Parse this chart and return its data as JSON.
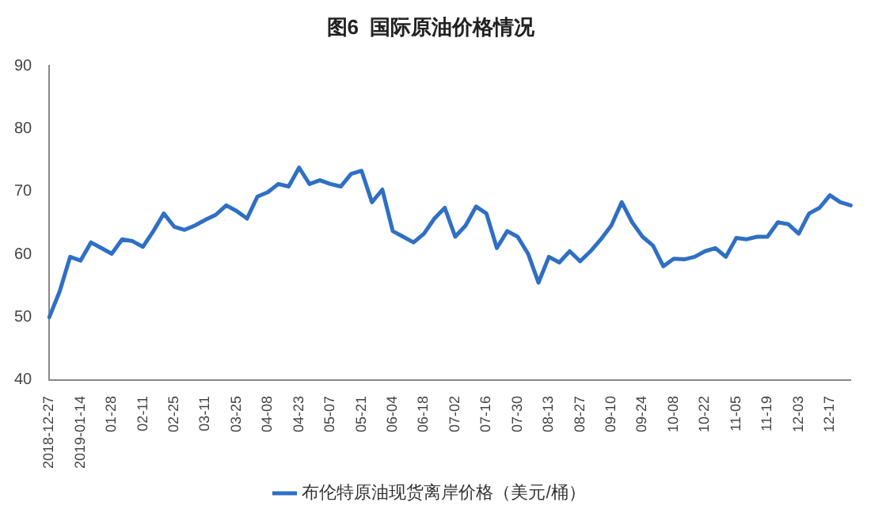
{
  "chart_data": {
    "type": "line",
    "title": "图6  国际原油价格情况",
    "categories": [
      "2018-12-27",
      null,
      null,
      "2019-01-14",
      null,
      null,
      "01-28",
      null,
      null,
      "02-11",
      null,
      null,
      "02-25",
      null,
      null,
      "03-11",
      null,
      null,
      "03-25",
      null,
      null,
      "04-08",
      null,
      null,
      "04-23",
      null,
      null,
      "05-07",
      null,
      null,
      "05-21",
      null,
      null,
      "06-04",
      null,
      null,
      "06-18",
      null,
      null,
      "07-02",
      null,
      null,
      "07-16",
      null,
      null,
      "07-30",
      null,
      null,
      "08-13",
      null,
      null,
      "08-27",
      null,
      null,
      "09-10",
      null,
      null,
      "09-24",
      null,
      null,
      "10-08",
      null,
      null,
      "10-22",
      null,
      null,
      "11-05",
      null,
      null,
      "11-19",
      null,
      null,
      "12-03",
      null,
      null,
      "12-17",
      null,
      null
    ],
    "series": [
      {
        "name": "布伦特原油现货离岸价格（美元/桶）",
        "color": "#2f6fc4",
        "values": [
          50.0,
          54.1,
          59.6,
          59.0,
          61.9,
          61.0,
          60.1,
          62.4,
          62.1,
          61.2,
          63.7,
          66.5,
          64.4,
          63.9,
          64.6,
          65.5,
          66.3,
          67.8,
          66.9,
          65.7,
          69.2,
          69.9,
          71.2,
          70.8,
          73.8,
          71.2,
          71.8,
          71.2,
          70.8,
          72.8,
          73.3,
          68.3,
          70.3,
          63.7,
          62.8,
          61.9,
          63.3,
          65.7,
          67.4,
          62.8,
          64.6,
          67.6,
          66.5,
          61.0,
          63.7,
          62.8,
          60.1,
          55.5,
          59.6,
          58.7,
          60.5,
          58.9,
          60.5,
          62.4,
          64.6,
          68.3,
          65.1,
          62.8,
          61.4,
          58.1,
          59.3,
          59.2,
          59.6,
          60.5,
          61.0,
          59.6,
          62.6,
          62.4,
          62.8,
          62.8,
          65.1,
          64.8,
          63.3,
          66.5,
          67.4,
          69.4,
          68.3,
          67.8
        ]
      }
    ],
    "ylim": [
      40,
      90
    ],
    "yticks": [
      40,
      50,
      60,
      70,
      80,
      90
    ],
    "grid": false,
    "legend": "bottom",
    "marker": "none",
    "line_style": "solid"
  }
}
